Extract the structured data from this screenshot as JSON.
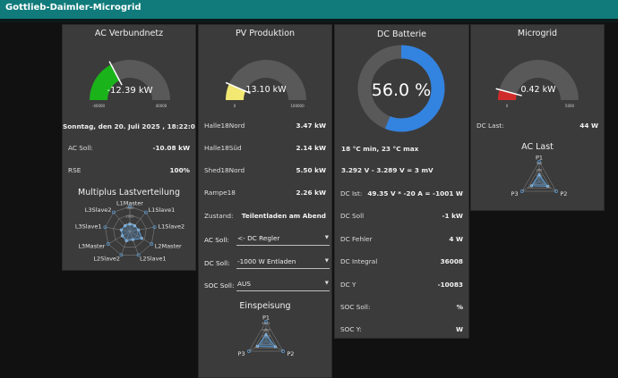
{
  "app": {
    "title": "Gottlieb-Daimler-Microgrid"
  },
  "colors": {
    "topbar": "#117b7b",
    "card": "#3b3b3b",
    "gauge_track": "#595959",
    "ac_fill": "#1ab31a",
    "pv_fill": "#f2e872",
    "battery_fill": "#3383e0",
    "micro_fill": "#cf2b2b",
    "radar": "#5b9bd5"
  },
  "ac": {
    "title": "AC Verbundnetz",
    "gauge": {
      "value": "-12.39 kW",
      "min": "-40000",
      "max": "40000",
      "level": -12390,
      "range": [
        -40000,
        40000
      ]
    },
    "date": "Sonntag, den 20. Juli 2025 , 18:22:09",
    "rows": [
      {
        "label": "AC Soll:",
        "value": "-10.08 kW"
      },
      {
        "label": "RSE",
        "value": "100%"
      }
    ],
    "radar_title": "Multiplus Lastverteilung",
    "radar_labels": [
      "L1Master",
      "L1Slave1",
      "L1Slave2",
      "L2Master",
      "L2Slave1",
      "L2Slave2",
      "L3Master",
      "L3Slave1",
      "L3Slave2"
    ],
    "radar_ticks": [
      "3000",
      "2000",
      "1000"
    ],
    "radar_values": [
      0.3,
      0.3,
      0.35,
      0.55,
      0.35,
      0.4,
      0.35,
      0.35,
      0.3
    ]
  },
  "pv": {
    "title": "PV Produktion",
    "gauge": {
      "value": "13.10 kW",
      "min": "0",
      "max": "100000",
      "level": 13100,
      "range": [
        0,
        100000
      ]
    },
    "rows": [
      {
        "label": "Halle18Nord",
        "value": "3.47 kW"
      },
      {
        "label": "Halle18Süd",
        "value": "2.14 kW"
      },
      {
        "label": "Shed18Nord",
        "value": "5.50 kW"
      },
      {
        "label": "Rampe18",
        "value": "2.26 kW"
      },
      {
        "label": "Zustand:",
        "value": "Teilentladen am Abend"
      }
    ],
    "selects": [
      {
        "label": "AC Soll:",
        "value": "<- DC Regler"
      },
      {
        "label": "DC Soll:",
        "value": "-1000 W Entladen"
      },
      {
        "label": "SOC Soll:",
        "value": "AUS"
      }
    ],
    "radar_title": "Einspeisung",
    "radar_labels": [
      "P1",
      "P2",
      "P3"
    ],
    "radar_ticks": [
      "6000",
      "4000",
      "2000"
    ],
    "radar_values": [
      0.35,
      0.55,
      0.5
    ]
  },
  "battery": {
    "title": "DC Batterie",
    "soc": "56.0 %",
    "soc_fraction": 0.56,
    "temps": "18 °C min, 23 °C max",
    "voltage": "3.292 V - 3.289 V = 3 mV",
    "dc_ist_label": "DC Ist:",
    "dc_ist_value": "49.35 V * -20 A = -1001 W",
    "rows": [
      {
        "label": "DC Soll",
        "value": "-1 kW"
      },
      {
        "label": "DC Fehler",
        "value": "4 W"
      },
      {
        "label": "DC Integral",
        "value": "36008"
      },
      {
        "label": "DC Y",
        "value": "-10083"
      },
      {
        "label": "SOC Soll:",
        "value": "%"
      },
      {
        "label": "SOC Y:",
        "value": "W"
      }
    ]
  },
  "micro": {
    "title": "Microgrid",
    "gauge": {
      "value": "0.42 kW",
      "min": "0",
      "max": "5000",
      "level": 420,
      "range": [
        0,
        5000
      ]
    },
    "dc_last_label": "DC Last:",
    "dc_last_value": "44 W",
    "radar_title": "AC Last",
    "radar_labels": [
      "P1",
      "P2",
      "P3"
    ],
    "radar_ticks": [
      "300",
      "200",
      "100"
    ],
    "radar_values": [
      0.35,
      0.5,
      0.45
    ]
  }
}
